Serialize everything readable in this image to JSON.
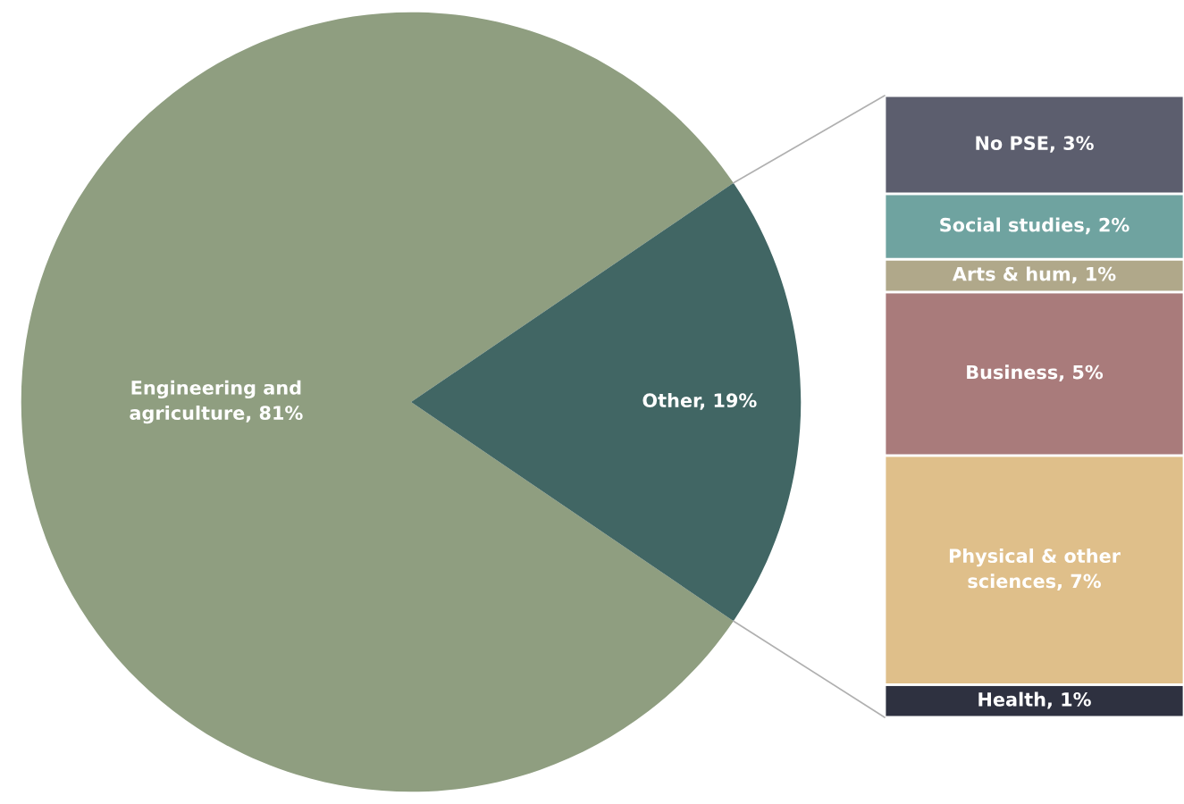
{
  "chart_data": [
    {
      "type": "pie",
      "categories": [
        "Engineering and\nagriculture, 81%",
        "Other, 19%"
      ],
      "values": [
        81,
        19
      ],
      "colors": [
        "#8f9e80",
        "#416664"
      ]
    },
    {
      "type": "bar",
      "stacked": true,
      "categories": [
        null
      ],
      "series": [
        {
          "color": "#2e3140",
          "values": [
            1
          ],
          "value_labels": [
            "Health, 1%"
          ]
        },
        {
          "color": "#dfbf8a",
          "values": [
            7
          ],
          "value_labels": [
            "Physical & other\nsciences, 7%"
          ]
        },
        {
          "color": "#a97b7b",
          "values": [
            5
          ],
          "value_labels": [
            "Business, 5%"
          ]
        },
        {
          "color": "#b0a88a",
          "values": [
            1
          ],
          "value_labels": [
            "Arts & hum, 1%"
          ]
        },
        {
          "color": "#6fa3a0",
          "values": [
            2
          ],
          "value_labels": [
            "Social studies, 2%"
          ]
        },
        {
          "color": "#5c5e6e",
          "values": [
            3
          ],
          "value_labels": [
            "No PSE, 3%"
          ]
        }
      ]
    }
  ]
}
